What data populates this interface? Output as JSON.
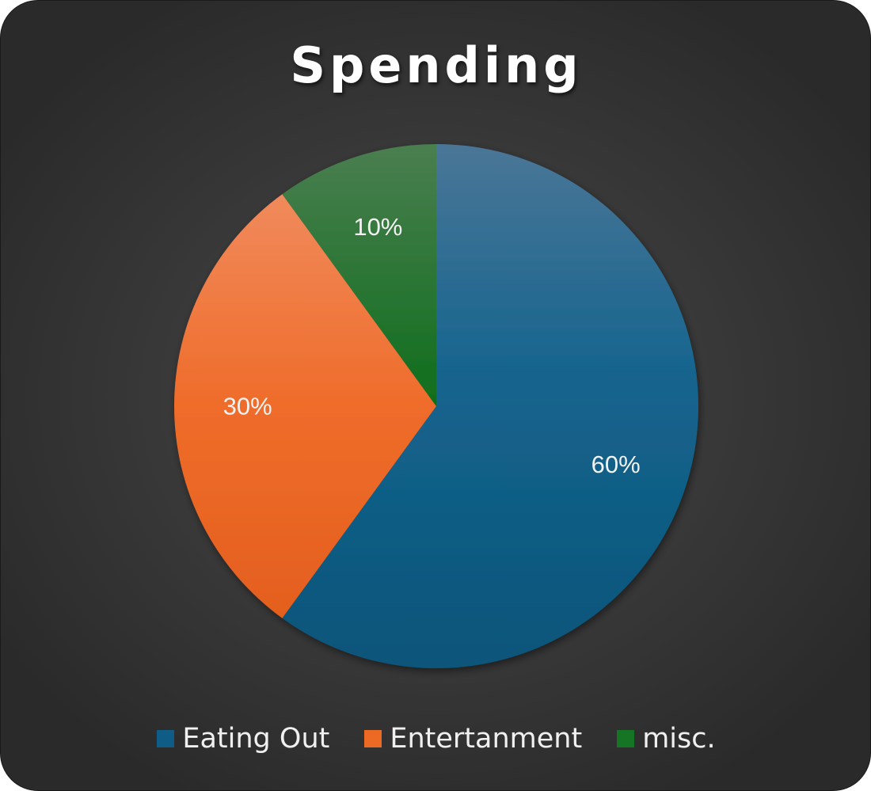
{
  "chart_data": {
    "type": "pie",
    "title": "Spending",
    "categories": [
      "Eating Out",
      "Entertanment",
      "misc."
    ],
    "values": [
      60,
      30,
      10
    ],
    "data_labels": [
      "60%",
      "30%",
      "10%"
    ],
    "colors": [
      "#0f5c86",
      "#ec6a24",
      "#167525"
    ],
    "legend_position": "bottom",
    "start_angle": "12 o'clock, clockwise"
  }
}
